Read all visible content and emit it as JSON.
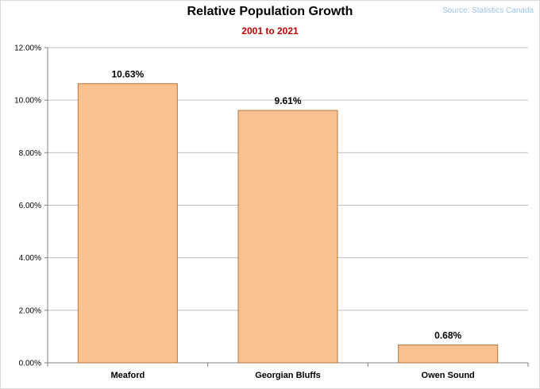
{
  "source_note": "Source: Statistics Canada",
  "chart_data": {
    "type": "bar",
    "title": "Relative Population Growth",
    "subtitle": "2001 to 2021",
    "xlabel": "",
    "ylabel": "",
    "categories": [
      "Meaford",
      "Georgian Bluffs",
      "Owen Sound"
    ],
    "values": [
      10.63,
      9.61,
      0.68
    ],
    "data_labels": [
      "10.63%",
      "9.61%",
      "0.68%"
    ],
    "y_ticks": [
      0,
      2,
      4,
      6,
      8,
      10,
      12
    ],
    "y_tick_labels": [
      "0.00%",
      "2.00%",
      "4.00%",
      "6.00%",
      "8.00%",
      "10.00%",
      "12.00%"
    ],
    "ylim": [
      0,
      12
    ],
    "grid": true,
    "legend": "none",
    "colors": {
      "bar_fill": "#f9c090",
      "bar_stroke": "#b5783c",
      "grid": "#bfbfbf",
      "subtitle": "#c00000",
      "source": "#9dc3e6"
    }
  }
}
